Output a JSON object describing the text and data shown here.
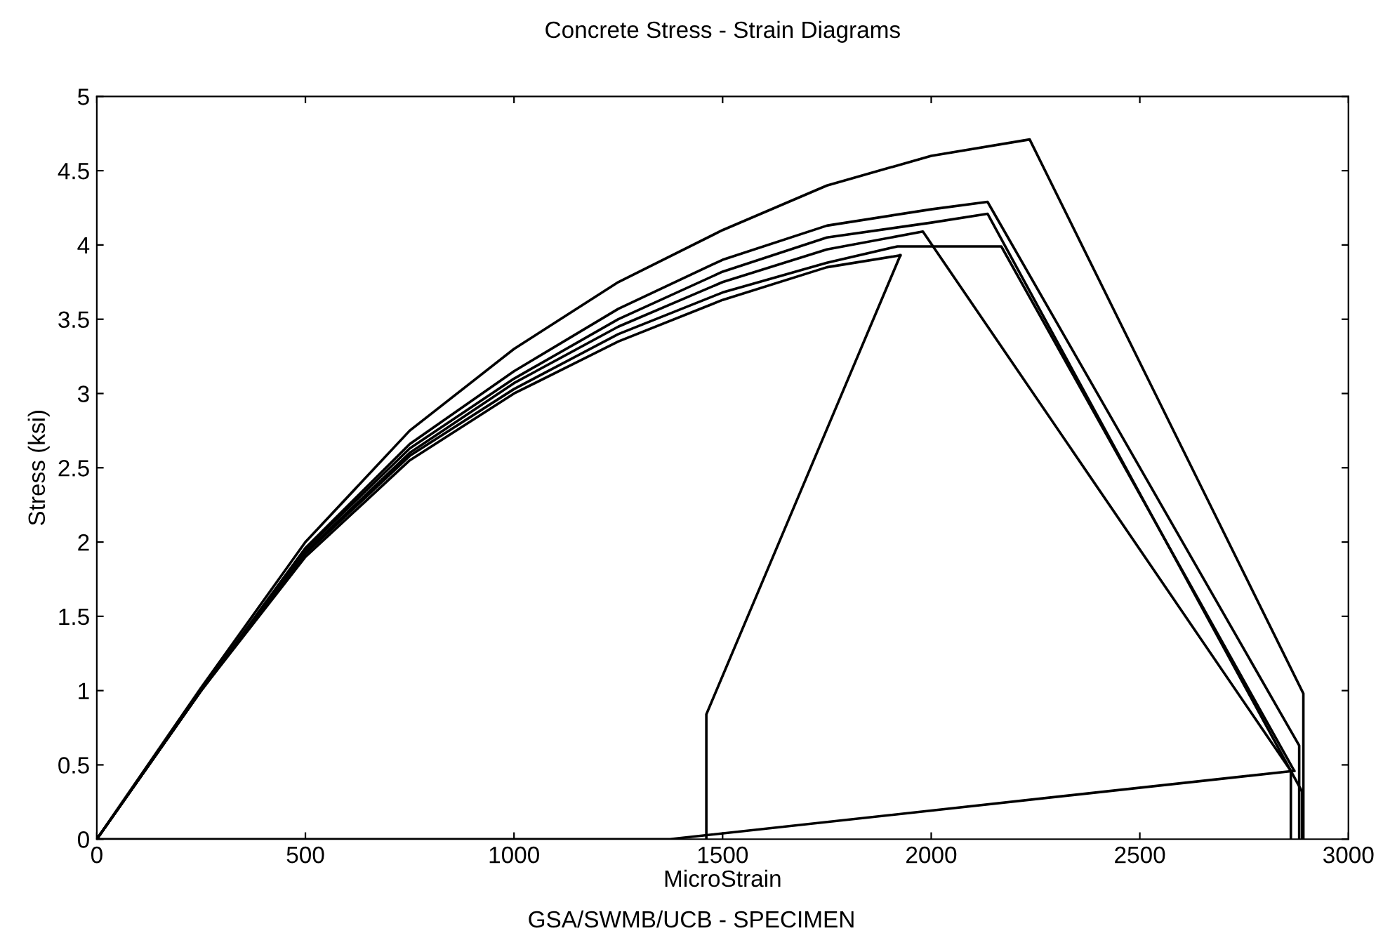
{
  "chart_data": {
    "type": "line",
    "title": "Concrete Stress - Strain Diagrams",
    "xlabel": "MicroStrain",
    "ylabel": "Stress (ksi)",
    "xlim": [
      0,
      3000
    ],
    "ylim": [
      0,
      5
    ],
    "xticks": [
      0,
      500,
      1000,
      1500,
      2000,
      2500,
      3000
    ],
    "yticks": [
      0,
      0.5,
      1,
      1.5,
      2,
      2.5,
      3,
      3.5,
      4,
      4.5,
      5
    ],
    "grid": false,
    "marker": "none",
    "line_style": "solid",
    "series": [
      {
        "color": "#000000",
        "x": [
          0,
          250,
          500,
          750,
          1000,
          1250,
          1500,
          1750,
          2000,
          2236,
          2892,
          2892
        ],
        "values": [
          0,
          1.02,
          2.0,
          2.75,
          3.3,
          3.75,
          4.1,
          4.4,
          4.6,
          4.71,
          0.98,
          0
        ]
      },
      {
        "color": "#000000",
        "x": [
          0,
          250,
          500,
          750,
          1000,
          1250,
          1500,
          1750,
          2000,
          2135,
          2882,
          2882
        ],
        "values": [
          0,
          1.0,
          1.96,
          2.66,
          3.15,
          3.57,
          3.9,
          4.13,
          4.24,
          4.29,
          0.63,
          0
        ]
      },
      {
        "color": "#000000",
        "x": [
          0,
          250,
          500,
          750,
          1000,
          1250,
          1500,
          1750,
          2000,
          2135,
          2889,
          2889
        ],
        "values": [
          0,
          1.0,
          1.95,
          2.63,
          3.1,
          3.5,
          3.82,
          4.05,
          4.15,
          4.21,
          0.32,
          0
        ]
      },
      {
        "color": "#000000",
        "x": [
          0,
          250,
          500,
          750,
          1000,
          1250,
          1500,
          1750,
          1980,
          2862,
          2862
        ],
        "values": [
          0,
          1.0,
          1.93,
          2.6,
          3.07,
          3.45,
          3.75,
          3.97,
          4.09,
          0.46,
          0
        ]
      },
      {
        "color": "#000000",
        "x": [
          0,
          250,
          500,
          750,
          1000,
          1250,
          1500,
          1750,
          1919,
          2168,
          2870
        ],
        "values": [
          0,
          1.0,
          1.92,
          2.58,
          3.03,
          3.4,
          3.68,
          3.88,
          3.99,
          3.99,
          0.46
        ]
      },
      {
        "color": "#000000",
        "x": [
          0,
          1374,
          2870
        ],
        "values": [
          0,
          0,
          0.46
        ]
      },
      {
        "color": "#000000",
        "x": [
          0,
          250,
          500,
          750,
          1000,
          1250,
          1500,
          1750,
          1926
        ],
        "values": [
          0,
          1.0,
          1.9,
          2.55,
          3.0,
          3.35,
          3.63,
          3.85,
          3.93
        ]
      },
      {
        "color": "#000000",
        "x": [
          1461,
          1461,
          1926
        ],
        "values": [
          0,
          0.84,
          3.93
        ]
      }
    ],
    "annotations": [
      "GSA/SWMB/UCB - SPECIMEN"
    ]
  }
}
